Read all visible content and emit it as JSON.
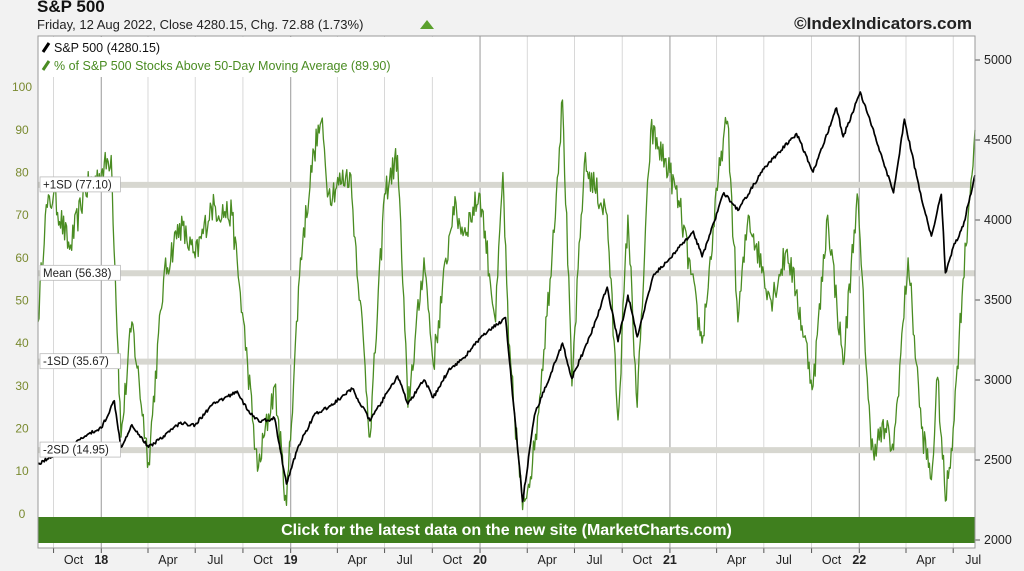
{
  "header": {
    "title": "S&P 500",
    "subtitle": "Friday, 12 Aug 2022, Close 4280.15, Chg. 72.88 (1.73%)",
    "watermark": "©IndexIndicators.com"
  },
  "banner": {
    "text": "Click for the latest data on the new site (MarketCharts.com)"
  },
  "colors": {
    "price": "#000000",
    "breadth": "#4a8c22",
    "banner": "#3f7f1e",
    "band": "#d7d7d0",
    "gridline": "#cfcfcf"
  },
  "chart_data": {
    "type": "line",
    "title": "S&P 500",
    "x_tick_labels": [
      "Oct",
      "18",
      "Apr",
      "Jul",
      "Oct",
      "19",
      "Apr",
      "Jul",
      "Oct",
      "20",
      "Apr",
      "Jul",
      "Oct",
      "21",
      "Apr",
      "Jul",
      "Oct",
      "22",
      "Apr",
      "Jul"
    ],
    "year_labels": [
      "18",
      "19",
      "20",
      "21",
      "22"
    ],
    "x_range": [
      "2017-09-01",
      "2022-08-12"
    ],
    "y_left": {
      "range": [
        -8,
        112
      ],
      "ticks": [
        0,
        10,
        20,
        30,
        40,
        50,
        60,
        70,
        80,
        90,
        100
      ]
    },
    "y_right": {
      "range": [
        1950,
        5150
      ],
      "ticks": [
        2000,
        2500,
        3000,
        3500,
        4000,
        4500,
        5000
      ]
    },
    "legend": [
      {
        "label": "S&P 500 (4280.15)",
        "series": "price"
      },
      {
        "label": "% of S&P 500 Stocks Above 50-Day Moving Average (89.90)",
        "series": "breadth"
      }
    ],
    "legend_position": "top-left",
    "reference_lines": [
      {
        "label": "+1SD (77.10)",
        "value": 77.1
      },
      {
        "label": "Mean (56.38)",
        "value": 56.38
      },
      {
        "label": "-1SD (35.67)",
        "value": 35.67
      },
      {
        "label": "-2SD (14.95)",
        "value": 14.95
      }
    ],
    "series": [
      {
        "name": "S&P 500",
        "axis": "right",
        "values": [
          [
            "2017-09-01",
            2475
          ],
          [
            "2017-10-01",
            2530
          ],
          [
            "2017-11-01",
            2580
          ],
          [
            "2017-12-01",
            2650
          ],
          [
            "2018-01-01",
            2700
          ],
          [
            "2018-01-26",
            2870
          ],
          [
            "2018-02-08",
            2580
          ],
          [
            "2018-03-01",
            2720
          ],
          [
            "2018-04-02",
            2580
          ],
          [
            "2018-05-01",
            2650
          ],
          [
            "2018-06-01",
            2730
          ],
          [
            "2018-07-01",
            2720
          ],
          [
            "2018-08-01",
            2840
          ],
          [
            "2018-09-20",
            2930
          ],
          [
            "2018-10-10",
            2810
          ],
          [
            "2018-11-01",
            2740
          ],
          [
            "2018-12-01",
            2760
          ],
          [
            "2018-12-24",
            2350
          ],
          [
            "2019-01-15",
            2580
          ],
          [
            "2019-02-15",
            2780
          ],
          [
            "2019-03-15",
            2830
          ],
          [
            "2019-04-30",
            2945
          ],
          [
            "2019-06-03",
            2745
          ],
          [
            "2019-07-26",
            3025
          ],
          [
            "2019-08-15",
            2850
          ],
          [
            "2019-09-15",
            3000
          ],
          [
            "2019-10-03",
            2890
          ],
          [
            "2019-11-01",
            3060
          ],
          [
            "2019-12-01",
            3140
          ],
          [
            "2020-01-01",
            3260
          ],
          [
            "2020-02-19",
            3390
          ],
          [
            "2020-03-23",
            2240
          ],
          [
            "2020-04-15",
            2780
          ],
          [
            "2020-06-08",
            3230
          ],
          [
            "2020-06-26",
            3010
          ],
          [
            "2020-08-01",
            3280
          ],
          [
            "2020-09-02",
            3580
          ],
          [
            "2020-09-23",
            3240
          ],
          [
            "2020-10-12",
            3530
          ],
          [
            "2020-10-30",
            3270
          ],
          [
            "2020-12-01",
            3660
          ],
          [
            "2021-01-01",
            3760
          ],
          [
            "2021-02-15",
            3930
          ],
          [
            "2021-03-04",
            3770
          ],
          [
            "2021-04-15",
            4170
          ],
          [
            "2021-05-12",
            4060
          ],
          [
            "2021-07-01",
            4320
          ],
          [
            "2021-09-02",
            4540
          ],
          [
            "2021-10-04",
            4300
          ],
          [
            "2021-11-18",
            4700
          ],
          [
            "2021-12-01",
            4520
          ],
          [
            "2022-01-03",
            4800
          ],
          [
            "2022-02-01",
            4520
          ],
          [
            "2022-03-08",
            4170
          ],
          [
            "2022-03-29",
            4630
          ],
          [
            "2022-05-01",
            4130
          ],
          [
            "2022-05-20",
            3900
          ],
          [
            "2022-06-08",
            4160
          ],
          [
            "2022-06-16",
            3670
          ],
          [
            "2022-07-01",
            3830
          ],
          [
            "2022-07-20",
            3960
          ],
          [
            "2022-08-12",
            4280
          ]
        ]
      },
      {
        "name": "% of S&P 500 Stocks Above 50-Day Moving Average",
        "axis": "left",
        "values": [
          [
            "2017-09-01",
            45
          ],
          [
            "2017-09-15",
            70
          ],
          [
            "2017-10-01",
            75
          ],
          [
            "2017-11-01",
            62
          ],
          [
            "2017-12-01",
            76
          ],
          [
            "2018-01-01",
            80
          ],
          [
            "2018-01-20",
            84
          ],
          [
            "2018-02-08",
            18
          ],
          [
            "2018-03-01",
            45
          ],
          [
            "2018-04-02",
            12
          ],
          [
            "2018-05-01",
            55
          ],
          [
            "2018-06-01",
            68
          ],
          [
            "2018-07-01",
            60
          ],
          [
            "2018-08-01",
            72
          ],
          [
            "2018-09-10",
            70
          ],
          [
            "2018-10-10",
            35
          ],
          [
            "2018-10-29",
            10
          ],
          [
            "2018-12-01",
            30
          ],
          [
            "2018-12-24",
            2
          ],
          [
            "2019-01-20",
            60
          ],
          [
            "2019-02-15",
            85
          ],
          [
            "2019-03-01",
            92
          ],
          [
            "2019-03-15",
            75
          ],
          [
            "2019-04-25",
            80
          ],
          [
            "2019-05-15",
            50
          ],
          [
            "2019-06-03",
            18
          ],
          [
            "2019-07-01",
            75
          ],
          [
            "2019-07-26",
            84
          ],
          [
            "2019-08-15",
            25
          ],
          [
            "2019-09-15",
            60
          ],
          [
            "2019-10-03",
            35
          ],
          [
            "2019-11-10",
            72
          ],
          [
            "2019-12-01",
            66
          ],
          [
            "2020-01-01",
            75
          ],
          [
            "2020-01-31",
            45
          ],
          [
            "2020-02-14",
            80
          ],
          [
            "2020-02-25",
            40
          ],
          [
            "2020-03-23",
            1
          ],
          [
            "2020-04-15",
            15
          ],
          [
            "2020-05-15",
            55
          ],
          [
            "2020-06-08",
            97
          ],
          [
            "2020-06-26",
            30
          ],
          [
            "2020-07-20",
            82
          ],
          [
            "2020-09-02",
            70
          ],
          [
            "2020-09-23",
            22
          ],
          [
            "2020-10-12",
            70
          ],
          [
            "2020-10-30",
            25
          ],
          [
            "2020-11-25",
            90
          ],
          [
            "2021-01-01",
            80
          ],
          [
            "2021-01-20",
            72
          ],
          [
            "2021-03-04",
            40
          ],
          [
            "2021-04-10",
            85
          ],
          [
            "2021-04-22",
            92
          ],
          [
            "2021-05-12",
            45
          ],
          [
            "2021-06-01",
            70
          ],
          [
            "2021-07-15",
            50
          ],
          [
            "2021-08-15",
            62
          ],
          [
            "2021-09-01",
            52
          ],
          [
            "2021-10-04",
            30
          ],
          [
            "2021-11-01",
            70
          ],
          [
            "2021-12-01",
            35
          ],
          [
            "2021-12-28",
            75
          ],
          [
            "2022-01-24",
            15
          ],
          [
            "2022-02-20",
            20
          ],
          [
            "2022-03-08",
            15
          ],
          [
            "2022-04-05",
            60
          ],
          [
            "2022-05-01",
            20
          ],
          [
            "2022-05-20",
            8
          ],
          [
            "2022-06-01",
            32
          ],
          [
            "2022-06-16",
            3
          ],
          [
            "2022-07-01",
            20
          ],
          [
            "2022-07-20",
            55
          ],
          [
            "2022-08-12",
            90
          ]
        ]
      }
    ]
  }
}
